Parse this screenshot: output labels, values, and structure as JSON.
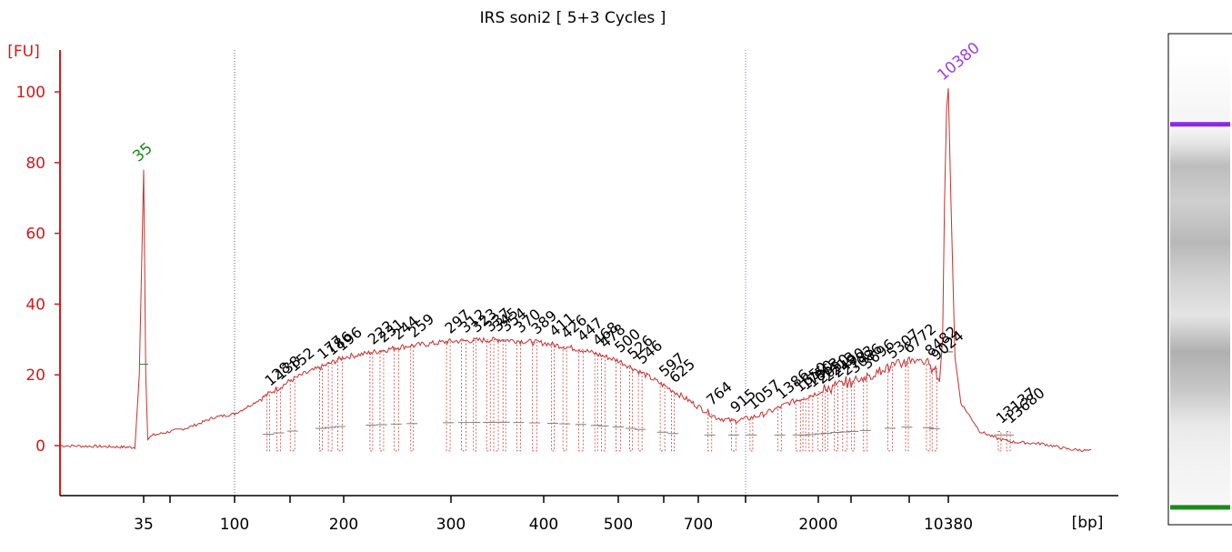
{
  "chart_data": {
    "type": "line",
    "title": "IRS soni2  [ 5+3 Cycles ]",
    "ylabel": "[FU]",
    "xlabel": "[bp]",
    "ylim": [
      -13,
      113
    ],
    "y_ticks": [
      0,
      20,
      40,
      60,
      80,
      100
    ],
    "x_tick_labels": [
      "35",
      "100",
      "200",
      "300",
      "400",
      "500",
      "700",
      "2000",
      "10380"
    ],
    "x_tick_marks": [
      35,
      50,
      100,
      150,
      200,
      300,
      400,
      500,
      600,
      700,
      1000,
      2000,
      3000,
      7000,
      10380
    ],
    "marker_peaks": [
      {
        "label": "35",
        "x": 35,
        "y": 78,
        "color": "#1a8a1a"
      },
      {
        "label": "10380",
        "x": 10380,
        "y": 101,
        "color": "#9b3fe0"
      }
    ],
    "smear_region": [
      100,
      1000
    ],
    "peak_labels": [
      "128",
      "138",
      "152",
      "177",
      "186",
      "196",
      "222",
      "231",
      "244",
      "259",
      "297",
      "312",
      "323",
      "337",
      "345",
      "354",
      "370",
      "389",
      "411",
      "426",
      "447",
      "468",
      "478",
      "500",
      "526",
      "546",
      "597",
      "625",
      "764",
      "915",
      "1057",
      "1386",
      "1650",
      "1750",
      "1863",
      "2050",
      "2213",
      "2490",
      "2783",
      "3086",
      "3696",
      "5307",
      "6772",
      "8482",
      "9024",
      "13137",
      "13680"
    ],
    "trace": {
      "x": [
        20,
        33,
        34,
        35,
        36,
        37,
        40,
        50,
        60,
        80,
        100,
        130,
        160,
        200,
        250,
        300,
        350,
        400,
        450,
        500,
        600,
        700,
        800,
        900,
        1000,
        1200,
        1500,
        2000,
        2500,
        3000,
        4000,
        5000,
        6000,
        7000,
        8000,
        9000,
        9500,
        9800,
        10000,
        10200,
        10380,
        10500,
        10700,
        11000,
        11500,
        12000,
        13000,
        14000,
        16000,
        18000,
        20000
      ],
      "y": [
        0,
        -0.5,
        20,
        78,
        20,
        2,
        3,
        4,
        5,
        8,
        9,
        15,
        20,
        25,
        28,
        29.5,
        30,
        29,
        27,
        24,
        17,
        11,
        8,
        7,
        7.5,
        9,
        12,
        15,
        17,
        18,
        20,
        22,
        23,
        24,
        24,
        22,
        18,
        30,
        70,
        95,
        101,
        70,
        25,
        12,
        8,
        4,
        2,
        1,
        0.5,
        -1,
        -1.5
      ]
    }
  },
  "gel": {
    "bands": [
      {
        "position": 0.18,
        "color": "#8a2be2"
      },
      {
        "position": 0.96,
        "color": "#1a8a1a"
      }
    ]
  },
  "colors": {
    "axis": "#d81818",
    "trace": "#c83030",
    "tick_text": "#000000",
    "smear_line": "#808080"
  }
}
